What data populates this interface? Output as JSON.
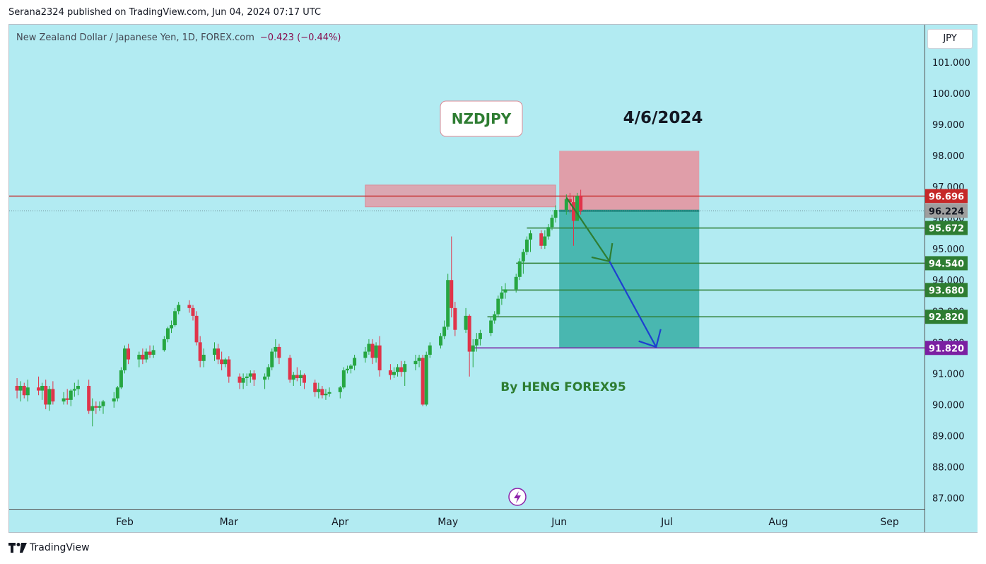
{
  "header": {
    "published_line": "Serana2324 published on TradingView.com, Jun 04, 2024 07:17 UTC"
  },
  "legend": {
    "symbol_line": "New Zealand Dollar / Japanese Yen, 1D, FOREX.com",
    "change": "−0.423 (−0.44%)"
  },
  "currency_button": "JPY",
  "footer": {
    "brand": "TradingView"
  },
  "annotations": {
    "ticker_box": "NZDJPY",
    "date_text": "4/6/2024",
    "author_text": "By HENG FOREX95"
  },
  "colors": {
    "background": "#b2ebf2",
    "up_candle": "#26a641",
    "down_candle": "#e0344a",
    "resistance_line": "#c62828",
    "target_line": "#2e7d32",
    "final_target": "#7b1fa2",
    "stop_zone": "#e8909c",
    "profit_zone": "#26a69a",
    "arrow_green": "#2e7d32",
    "arrow_blue": "#1e40d0"
  },
  "chart_data": {
    "type": "candlestick",
    "title": "",
    "xlabel": "",
    "ylabel": "",
    "ylim": [
      86.65,
      102.2
    ],
    "y_ticks": [
      "101.000",
      "100.000",
      "99.000",
      "98.000",
      "97.000",
      "96.000",
      "95.000",
      "94.000",
      "93.000",
      "92.000",
      "91.000",
      "90.000",
      "89.000",
      "88.000",
      "87.000"
    ],
    "x_ticks": [
      "Feb",
      "Mar",
      "Apr",
      "May",
      "Jun",
      "Jul",
      "Aug",
      "Sep"
    ],
    "price_labels": [
      {
        "label": "96.696",
        "value": 96.696,
        "role": "resistance"
      },
      {
        "label": "96.224",
        "value": 96.224,
        "role": "current"
      },
      {
        "label": "95.672",
        "value": 95.672,
        "role": "target"
      },
      {
        "label": "94.540",
        "value": 94.54,
        "role": "target"
      },
      {
        "label": "93.680",
        "value": 93.68,
        "role": "target"
      },
      {
        "label": "92.820",
        "value": 92.82,
        "role": "target"
      },
      {
        "label": "91.820",
        "value": 91.82,
        "role": "final"
      }
    ],
    "zones": {
      "supply_zone": {
        "x_from": "2024-04-08",
        "x_to": "2024-05-31",
        "y_from": 96.35,
        "y_to": 97.05
      },
      "stop_loss": {
        "x_from": "2024-06-01",
        "x_to": "2024-07-10",
        "y_from": 96.224,
        "y_to": 98.15
      },
      "take_profit": {
        "x_from": "2024-06-01",
        "x_to": "2024-07-10",
        "y_from": 91.82,
        "y_to": 96.224
      }
    },
    "arrows": [
      {
        "color": "green",
        "from": {
          "x": "2024-06-03",
          "y": 96.65
        },
        "to": {
          "x": "2024-06-15",
          "y": 94.6
        }
      },
      {
        "color": "blue",
        "from": {
          "x": "2024-06-15",
          "y": 94.6
        },
        "to": {
          "x": "2024-06-28",
          "y": 91.85
        }
      }
    ],
    "candles": [
      {
        "date": "2024-01-02",
        "o": 90.6,
        "h": 90.85,
        "l": 90.2,
        "c": 90.45
      },
      {
        "date": "2024-01-03",
        "o": 90.45,
        "h": 90.75,
        "l": 90.1,
        "c": 90.6
      },
      {
        "date": "2024-01-04",
        "o": 90.6,
        "h": 90.7,
        "l": 90.2,
        "c": 90.3
      },
      {
        "date": "2024-01-05",
        "o": 90.3,
        "h": 90.8,
        "l": 90.1,
        "c": 90.55
      },
      {
        "date": "2024-01-08",
        "o": 90.55,
        "h": 90.9,
        "l": 90.3,
        "c": 90.45
      },
      {
        "date": "2024-01-09",
        "o": 90.45,
        "h": 90.7,
        "l": 90.15,
        "c": 90.6
      },
      {
        "date": "2024-01-10",
        "o": 90.6,
        "h": 90.8,
        "l": 89.85,
        "c": 90.0
      },
      {
        "date": "2024-01-11",
        "o": 90.0,
        "h": 90.6,
        "l": 89.8,
        "c": 90.5
      },
      {
        "date": "2024-01-12",
        "o": 90.5,
        "h": 90.75,
        "l": 90.0,
        "c": 90.1
      },
      {
        "date": "2024-01-15",
        "o": 90.1,
        "h": 90.4,
        "l": 90.0,
        "c": 90.2
      },
      {
        "date": "2024-01-16",
        "o": 90.2,
        "h": 90.5,
        "l": 90.0,
        "c": 90.15
      },
      {
        "date": "2024-01-17",
        "o": 90.15,
        "h": 90.5,
        "l": 89.95,
        "c": 90.45
      },
      {
        "date": "2024-01-18",
        "o": 90.45,
        "h": 90.7,
        "l": 90.25,
        "c": 90.5
      },
      {
        "date": "2024-01-19",
        "o": 90.5,
        "h": 90.8,
        "l": 90.3,
        "c": 90.6
      },
      {
        "date": "2024-01-22",
        "o": 90.6,
        "h": 90.8,
        "l": 89.7,
        "c": 89.8
      },
      {
        "date": "2024-01-23",
        "o": 89.8,
        "h": 90.2,
        "l": 89.3,
        "c": 89.95
      },
      {
        "date": "2024-01-24",
        "o": 89.95,
        "h": 90.1,
        "l": 89.7,
        "c": 89.9
      },
      {
        "date": "2024-01-25",
        "o": 89.9,
        "h": 90.1,
        "l": 89.8,
        "c": 89.95
      },
      {
        "date": "2024-01-26",
        "o": 89.95,
        "h": 90.15,
        "l": 89.7,
        "c": 90.1
      },
      {
        "date": "2024-01-29",
        "o": 90.1,
        "h": 90.4,
        "l": 89.9,
        "c": 90.2
      },
      {
        "date": "2024-01-30",
        "o": 90.2,
        "h": 90.6,
        "l": 90.1,
        "c": 90.55
      },
      {
        "date": "2024-01-31",
        "o": 90.55,
        "h": 91.2,
        "l": 90.5,
        "c": 91.1
      },
      {
        "date": "2024-02-01",
        "o": 91.1,
        "h": 91.9,
        "l": 91.0,
        "c": 91.8
      },
      {
        "date": "2024-02-02",
        "o": 91.8,
        "h": 91.95,
        "l": 91.3,
        "c": 91.45
      },
      {
        "date": "2024-02-05",
        "o": 91.45,
        "h": 91.7,
        "l": 91.2,
        "c": 91.6
      },
      {
        "date": "2024-02-06",
        "o": 91.6,
        "h": 91.8,
        "l": 91.3,
        "c": 91.45
      },
      {
        "date": "2024-02-07",
        "o": 91.45,
        "h": 91.8,
        "l": 91.35,
        "c": 91.7
      },
      {
        "date": "2024-02-08",
        "o": 91.7,
        "h": 91.9,
        "l": 91.5,
        "c": 91.6
      },
      {
        "date": "2024-02-09",
        "o": 91.6,
        "h": 91.9,
        "l": 91.5,
        "c": 91.75
      },
      {
        "date": "2024-02-12",
        "o": 91.75,
        "h": 92.2,
        "l": 91.7,
        "c": 92.1
      },
      {
        "date": "2024-02-13",
        "o": 92.1,
        "h": 92.5,
        "l": 92.0,
        "c": 92.45
      },
      {
        "date": "2024-02-14",
        "o": 92.45,
        "h": 92.7,
        "l": 92.3,
        "c": 92.55
      },
      {
        "date": "2024-02-15",
        "o": 92.55,
        "h": 93.1,
        "l": 92.5,
        "c": 93.0
      },
      {
        "date": "2024-02-16",
        "o": 93.0,
        "h": 93.3,
        "l": 92.9,
        "c": 93.2
      },
      {
        "date": "2024-02-19",
        "o": 93.2,
        "h": 93.35,
        "l": 92.95,
        "c": 93.1
      },
      {
        "date": "2024-02-20",
        "o": 93.1,
        "h": 93.2,
        "l": 92.7,
        "c": 92.85
      },
      {
        "date": "2024-02-21",
        "o": 92.85,
        "h": 93.0,
        "l": 91.9,
        "c": 92.0
      },
      {
        "date": "2024-02-22",
        "o": 92.0,
        "h": 92.2,
        "l": 91.2,
        "c": 91.4
      },
      {
        "date": "2024-02-23",
        "o": 91.4,
        "h": 91.8,
        "l": 91.2,
        "c": 91.6
      },
      {
        "date": "2024-02-26",
        "o": 91.6,
        "h": 92.0,
        "l": 91.4,
        "c": 91.8
      },
      {
        "date": "2024-02-27",
        "o": 91.8,
        "h": 91.95,
        "l": 91.3,
        "c": 91.45
      },
      {
        "date": "2024-02-28",
        "o": 91.45,
        "h": 91.7,
        "l": 91.1,
        "c": 91.3
      },
      {
        "date": "2024-02-29",
        "o": 91.3,
        "h": 91.5,
        "l": 91.2,
        "c": 91.45
      },
      {
        "date": "2024-03-01",
        "o": 91.45,
        "h": 91.55,
        "l": 90.7,
        "c": 90.9
      },
      {
        "date": "2024-03-04",
        "o": 90.9,
        "h": 91.0,
        "l": 90.5,
        "c": 90.7
      },
      {
        "date": "2024-03-05",
        "o": 90.7,
        "h": 91.0,
        "l": 90.5,
        "c": 90.85
      },
      {
        "date": "2024-03-06",
        "o": 90.85,
        "h": 91.0,
        "l": 90.6,
        "c": 90.9
      },
      {
        "date": "2024-03-07",
        "o": 90.9,
        "h": 91.1,
        "l": 90.7,
        "c": 91.0
      },
      {
        "date": "2024-03-08",
        "o": 91.0,
        "h": 91.1,
        "l": 90.6,
        "c": 90.8
      },
      {
        "date": "2024-03-11",
        "o": 90.8,
        "h": 91.0,
        "l": 90.5,
        "c": 90.9
      },
      {
        "date": "2024-03-12",
        "o": 90.9,
        "h": 91.3,
        "l": 90.8,
        "c": 91.2
      },
      {
        "date": "2024-03-13",
        "o": 91.2,
        "h": 91.8,
        "l": 91.1,
        "c": 91.7
      },
      {
        "date": "2024-03-14",
        "o": 91.7,
        "h": 92.1,
        "l": 91.5,
        "c": 91.85
      },
      {
        "date": "2024-03-15",
        "o": 91.85,
        "h": 91.95,
        "l": 91.3,
        "c": 91.5
      },
      {
        "date": "2024-03-18",
        "o": 91.5,
        "h": 91.6,
        "l": 90.7,
        "c": 90.8
      },
      {
        "date": "2024-03-19",
        "o": 90.8,
        "h": 91.05,
        "l": 90.6,
        "c": 90.95
      },
      {
        "date": "2024-03-20",
        "o": 90.95,
        "h": 91.2,
        "l": 90.75,
        "c": 90.85
      },
      {
        "date": "2024-03-21",
        "o": 90.85,
        "h": 91.1,
        "l": 90.6,
        "c": 90.95
      },
      {
        "date": "2024-03-22",
        "o": 90.95,
        "h": 91.0,
        "l": 90.5,
        "c": 90.7
      },
      {
        "date": "2024-03-25",
        "o": 90.7,
        "h": 90.8,
        "l": 90.25,
        "c": 90.4
      },
      {
        "date": "2024-03-26",
        "o": 90.4,
        "h": 90.7,
        "l": 90.2,
        "c": 90.5
      },
      {
        "date": "2024-03-27",
        "o": 90.5,
        "h": 90.6,
        "l": 90.2,
        "c": 90.3
      },
      {
        "date": "2024-03-28",
        "o": 90.3,
        "h": 90.5,
        "l": 90.15,
        "c": 90.35
      },
      {
        "date": "2024-03-29",
        "o": 90.35,
        "h": 90.55,
        "l": 90.25,
        "c": 90.4
      },
      {
        "date": "2024-04-01",
        "o": 90.4,
        "h": 90.6,
        "l": 90.2,
        "c": 90.55
      },
      {
        "date": "2024-04-02",
        "o": 90.55,
        "h": 91.2,
        "l": 90.5,
        "c": 91.1
      },
      {
        "date": "2024-04-03",
        "o": 91.1,
        "h": 91.25,
        "l": 91.0,
        "c": 91.15
      },
      {
        "date": "2024-04-04",
        "o": 91.15,
        "h": 91.3,
        "l": 91.0,
        "c": 91.25
      },
      {
        "date": "2024-04-05",
        "o": 91.25,
        "h": 91.6,
        "l": 91.1,
        "c": 91.5
      },
      {
        "date": "2024-04-08",
        "o": 91.5,
        "h": 91.85,
        "l": 91.35,
        "c": 91.7
      },
      {
        "date": "2024-04-09",
        "o": 91.7,
        "h": 92.1,
        "l": 91.6,
        "c": 91.95
      },
      {
        "date": "2024-04-10",
        "o": 91.95,
        "h": 92.1,
        "l": 91.3,
        "c": 91.5
      },
      {
        "date": "2024-04-11",
        "o": 91.5,
        "h": 92.0,
        "l": 91.35,
        "c": 91.9
      },
      {
        "date": "2024-04-12",
        "o": 91.9,
        "h": 92.2,
        "l": 90.9,
        "c": 91.1
      },
      {
        "date": "2024-04-15",
        "o": 91.1,
        "h": 91.3,
        "l": 90.8,
        "c": 90.95
      },
      {
        "date": "2024-04-16",
        "o": 90.95,
        "h": 91.2,
        "l": 90.85,
        "c": 91.05
      },
      {
        "date": "2024-04-17",
        "o": 91.05,
        "h": 91.3,
        "l": 90.9,
        "c": 91.2
      },
      {
        "date": "2024-04-18",
        "o": 91.2,
        "h": 91.4,
        "l": 90.9,
        "c": 91.05
      },
      {
        "date": "2024-04-19",
        "o": 91.05,
        "h": 91.4,
        "l": 90.6,
        "c": 91.3
      },
      {
        "date": "2024-04-22",
        "o": 91.3,
        "h": 91.6,
        "l": 91.1,
        "c": 91.4
      },
      {
        "date": "2024-04-23",
        "o": 91.4,
        "h": 91.6,
        "l": 91.2,
        "c": 91.5
      },
      {
        "date": "2024-04-24",
        "o": 91.5,
        "h": 91.6,
        "l": 89.95,
        "c": 90.0
      },
      {
        "date": "2024-04-25",
        "o": 90.0,
        "h": 91.7,
        "l": 89.95,
        "c": 91.6
      },
      {
        "date": "2024-04-26",
        "o": 91.6,
        "h": 92.0,
        "l": 91.5,
        "c": 91.9
      },
      {
        "date": "2024-04-29",
        "o": 91.9,
        "h": 92.3,
        "l": 91.8,
        "c": 92.2
      },
      {
        "date": "2024-04-30",
        "o": 92.2,
        "h": 92.7,
        "l": 92.1,
        "c": 92.5
      },
      {
        "date": "2024-05-01",
        "o": 92.5,
        "h": 94.2,
        "l": 92.4,
        "c": 94.0
      },
      {
        "date": "2024-05-02",
        "o": 94.0,
        "h": 95.4,
        "l": 92.8,
        "c": 93.1
      },
      {
        "date": "2024-05-03",
        "o": 93.1,
        "h": 93.3,
        "l": 92.2,
        "c": 92.4
      },
      {
        "date": "2024-05-06",
        "o": 92.4,
        "h": 93.1,
        "l": 92.3,
        "c": 92.85
      },
      {
        "date": "2024-05-07",
        "o": 92.85,
        "h": 92.9,
        "l": 90.9,
        "c": 91.7
      },
      {
        "date": "2024-05-08",
        "o": 91.7,
        "h": 92.1,
        "l": 91.2,
        "c": 91.9
      },
      {
        "date": "2024-05-09",
        "o": 91.9,
        "h": 92.3,
        "l": 91.7,
        "c": 92.1
      },
      {
        "date": "2024-05-10",
        "o": 92.1,
        "h": 92.4,
        "l": 91.9,
        "c": 92.3
      },
      {
        "date": "2024-05-13",
        "o": 92.3,
        "h": 92.8,
        "l": 92.2,
        "c": 92.7
      },
      {
        "date": "2024-05-14",
        "o": 92.7,
        "h": 93.0,
        "l": 92.6,
        "c": 92.9
      },
      {
        "date": "2024-05-15",
        "o": 92.9,
        "h": 93.5,
        "l": 92.8,
        "c": 93.4
      },
      {
        "date": "2024-05-16",
        "o": 93.4,
        "h": 93.8,
        "l": 93.2,
        "c": 93.6
      },
      {
        "date": "2024-05-17",
        "o": 93.6,
        "h": 93.9,
        "l": 93.4,
        "c": 93.7
      },
      {
        "date": "2024-05-20",
        "o": 93.7,
        "h": 94.2,
        "l": 93.6,
        "c": 94.1
      },
      {
        "date": "2024-05-21",
        "o": 94.1,
        "h": 94.7,
        "l": 94.0,
        "c": 94.6
      },
      {
        "date": "2024-05-22",
        "o": 94.6,
        "h": 95.0,
        "l": 94.2,
        "c": 94.9
      },
      {
        "date": "2024-05-23",
        "o": 94.9,
        "h": 95.4,
        "l": 94.8,
        "c": 95.3
      },
      {
        "date": "2024-05-24",
        "o": 95.3,
        "h": 95.6,
        "l": 94.9,
        "c": 95.5
      },
      {
        "date": "2024-05-27",
        "o": 95.5,
        "h": 95.6,
        "l": 95.0,
        "c": 95.1
      },
      {
        "date": "2024-05-28",
        "o": 95.1,
        "h": 95.6,
        "l": 95.0,
        "c": 95.4
      },
      {
        "date": "2024-05-29",
        "o": 95.4,
        "h": 95.8,
        "l": 95.3,
        "c": 95.7
      },
      {
        "date": "2024-05-30",
        "o": 95.7,
        "h": 96.1,
        "l": 95.6,
        "c": 96.0
      },
      {
        "date": "2024-05-31",
        "o": 96.0,
        "h": 96.4,
        "l": 95.85,
        "c": 96.25
      },
      {
        "date": "2024-06-03",
        "o": 96.25,
        "h": 96.75,
        "l": 96.1,
        "c": 96.6
      },
      {
        "date": "2024-06-04",
        "o": 96.6,
        "h": 96.8,
        "l": 96.15,
        "c": 96.5
      },
      {
        "date": "2024-06-05",
        "o": 96.5,
        "h": 96.7,
        "l": 95.1,
        "c": 95.9
      },
      {
        "date": "2024-06-06",
        "o": 95.9,
        "h": 96.8,
        "l": 95.9,
        "c": 96.7
      },
      {
        "date": "2024-06-07",
        "o": 96.7,
        "h": 96.9,
        "l": 96.1,
        "c": 96.22
      }
    ]
  }
}
